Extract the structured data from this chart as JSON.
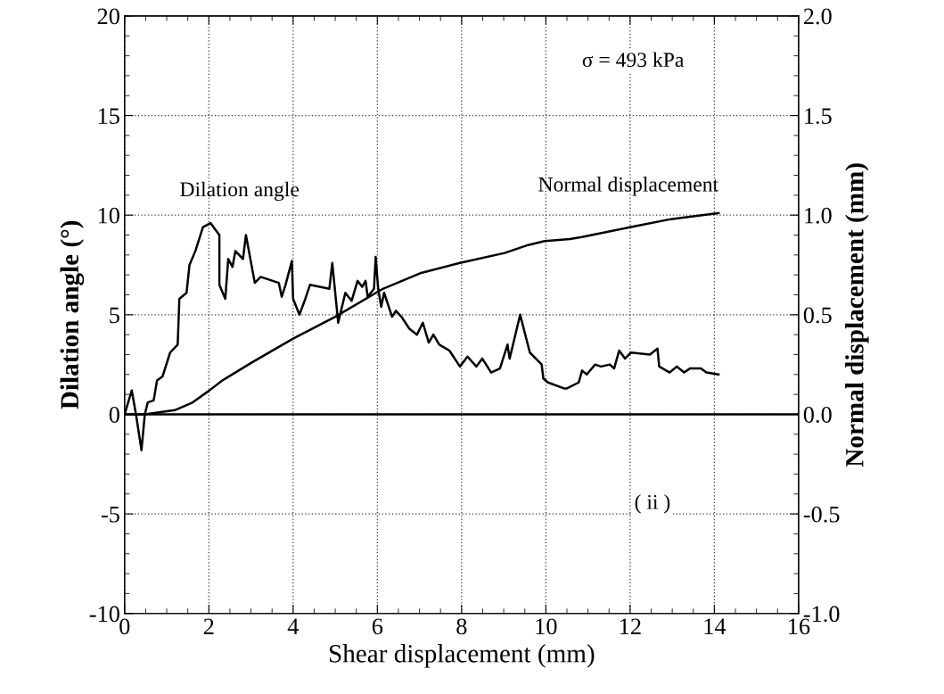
{
  "chart_data": {
    "type": "line",
    "xlabel": "Shear displacement (mm)",
    "ylabel": "Dilation angle (°)",
    "y2label": "Normal displacement (mm)",
    "xlim": [
      0,
      16
    ],
    "xticks": [
      0,
      2,
      4,
      6,
      8,
      10,
      12,
      14,
      16
    ],
    "ylim": [
      -10,
      20
    ],
    "yticks": [
      -10,
      -5,
      0,
      5,
      10,
      15,
      20
    ],
    "y2lim": [
      -1.0,
      2.0
    ],
    "y2ticks": [
      {
        "value": -1.0,
        "label": "-1.0"
      },
      {
        "value": -0.5,
        "label": "-0.5"
      },
      {
        "value": 0.0,
        "label": "0.0"
      },
      {
        "value": 0.5,
        "label": "0.5"
      },
      {
        "value": 1.0,
        "label": "1.0"
      },
      {
        "value": 1.5,
        "label": "1.5"
      },
      {
        "value": 2.0,
        "label": "2.0"
      }
    ],
    "grid": true,
    "legend": false,
    "marker": "none",
    "line_style": "solid",
    "ref_lines": [
      {
        "axis": "y",
        "value": 0,
        "color": "#000000",
        "line_style": "solid"
      }
    ],
    "annotations": [
      "σ = 493 kPa",
      "( ii )"
    ],
    "series": [
      {
        "name": "Dilation angle",
        "color": "#000000",
        "x": [
          0,
          0.17,
          0.27,
          0.4,
          0.48,
          0.55,
          0.69,
          0.77,
          0.9,
          1.08,
          1.26,
          1.3,
          1.47,
          1.54,
          1.68,
          1.86,
          2.04,
          2.25,
          2.25,
          2.39,
          2.46,
          2.56,
          2.63,
          2.81,
          2.88,
          3.09,
          3.23,
          3.66,
          3.73,
          3.82,
          3.97,
          4.0,
          4.15,
          4.29,
          4.4,
          4.86,
          4.93,
          5.07,
          5.24,
          5.39,
          5.53,
          5.64,
          5.72,
          5.77,
          5.92,
          5.96,
          6.02,
          6.09,
          6.16,
          6.35,
          6.44,
          6.57,
          6.76,
          6.94,
          7.08,
          7.22,
          7.33,
          7.47,
          7.71,
          7.96,
          8.14,
          8.35,
          8.49,
          8.7,
          8.91,
          9.09,
          9.14,
          9.39,
          9.62,
          9.9,
          9.94,
          10.05,
          10.43,
          10.5,
          10.78,
          10.86,
          10.97,
          11.17,
          11.31,
          11.52,
          11.62,
          11.74,
          11.88,
          12.02,
          12.47,
          12.65,
          12.69,
          12.94,
          13.11,
          13.28,
          13.42,
          13.68,
          13.81,
          14.1
        ],
        "values": [
          0,
          1.2,
          0,
          -1.8,
          0,
          0.6,
          0.7,
          1.7,
          1.9,
          3.1,
          3.5,
          5.8,
          6.1,
          7.5,
          8.2,
          9.4,
          9.6,
          9.0,
          6.5,
          5.8,
          7.8,
          7.4,
          8.2,
          7.8,
          9.0,
          6.6,
          6.9,
          6.6,
          5.9,
          6.5,
          7.7,
          5.8,
          5.0,
          5.8,
          6.5,
          6.3,
          7.6,
          4.6,
          6.1,
          5.7,
          6.7,
          6.4,
          6.7,
          5.9,
          6.3,
          7.9,
          6.3,
          5.4,
          6.1,
          4.9,
          5.2,
          4.9,
          4.3,
          4.0,
          4.6,
          3.6,
          4.0,
          3.5,
          3.2,
          2.4,
          2.9,
          2.4,
          2.8,
          2.1,
          2.3,
          3.5,
          2.8,
          5.0,
          3.1,
          2.5,
          1.8,
          1.6,
          1.3,
          1.3,
          1.6,
          2.2,
          2.0,
          2.5,
          2.4,
          2.5,
          2.3,
          3.2,
          2.8,
          3.1,
          3.0,
          3.3,
          2.4,
          2.1,
          2.4,
          2.1,
          2.3,
          2.3,
          2.1,
          2.0
        ]
      },
      {
        "name": "Normal displacement",
        "color": "#000000",
        "axis": "y2",
        "x": [
          0,
          0.48,
          1.19,
          1.61,
          2.0,
          2.32,
          3.02,
          4.0,
          5.0,
          6.13,
          7.04,
          7.96,
          9.02,
          9.58,
          9.97,
          10.57,
          10.85,
          12.02,
          12.97,
          14.1
        ],
        "values": [
          0,
          0,
          0.021,
          0.059,
          0.118,
          0.17,
          0.26,
          0.38,
          0.49,
          0.63,
          0.71,
          0.76,
          0.81,
          0.85,
          0.87,
          0.88,
          0.89,
          0.94,
          0.98,
          1.01
        ]
      }
    ]
  }
}
